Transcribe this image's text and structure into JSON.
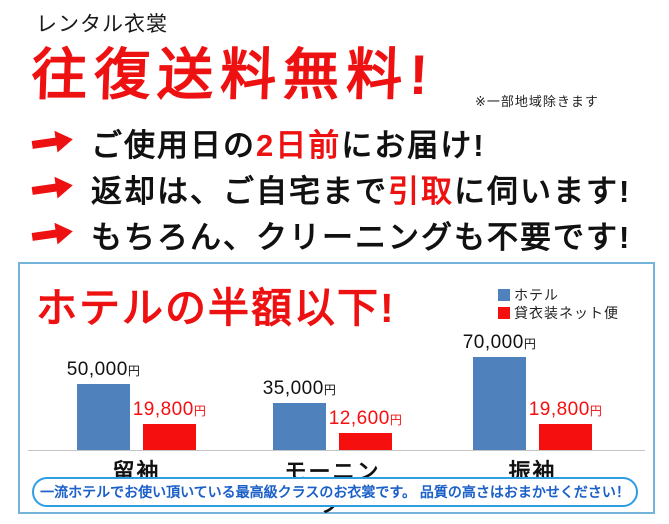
{
  "header": {
    "small_title": "レンタル衣裳",
    "headline": "往復送料無料!",
    "note": "※一部地域除きます"
  },
  "bullets": [
    {
      "segments": [
        {
          "text": "ご使用日の",
          "red": false
        },
        {
          "text": "2日前",
          "red": true
        },
        {
          "text": "にお届け!",
          "red": false
        }
      ]
    },
    {
      "segments": [
        {
          "text": "返却は、ご自宅まで",
          "red": false
        },
        {
          "text": "引取",
          "red": true
        },
        {
          "text": "に伺います!",
          "red": false
        }
      ]
    },
    {
      "segments": [
        {
          "text": "もちろん、クリーニングも不要です!",
          "red": false
        }
      ]
    }
  ],
  "price_box": {
    "title": "ホテルの半額以下!",
    "legend": [
      {
        "label": "ホテル",
        "color": "#4f81bd"
      },
      {
        "label": "貸衣装ネット便",
        "color": "#f50f0f"
      }
    ],
    "footer": "一流ホテルでお使い頂いている最高級クラスのお衣裳です。 品質の高さはおまかせください！"
  },
  "chart_data": {
    "type": "bar",
    "title": "ホテルの半額以下!",
    "categories": [
      "留袖",
      "モーニング",
      "振袖"
    ],
    "series": [
      {
        "name": "ホテル",
        "color": "#4f81bd",
        "label_color": "#111111",
        "values": [
          50000,
          35000,
          70000
        ]
      },
      {
        "name": "貸衣装ネット便",
        "color": "#f50f0f",
        "label_color": "#f50f0f",
        "values": [
          19800,
          12600,
          19800
        ]
      }
    ],
    "unit": "円",
    "xlabel": "",
    "ylabel": "",
    "ylim": [
      0,
      74000
    ],
    "grid": false,
    "legend_position": "top-right"
  },
  "icons": {
    "bullet_arrow": "right-arrow"
  },
  "colors": {
    "accent_red": "#ee1111",
    "bar_blue": "#4f81bd",
    "bar_red": "#f50f0f",
    "box_border": "#74b4da",
    "pill_border": "#2d9ee6",
    "pill_text": "#1b5fc8",
    "baseline_gray": "#c4c4c4"
  }
}
